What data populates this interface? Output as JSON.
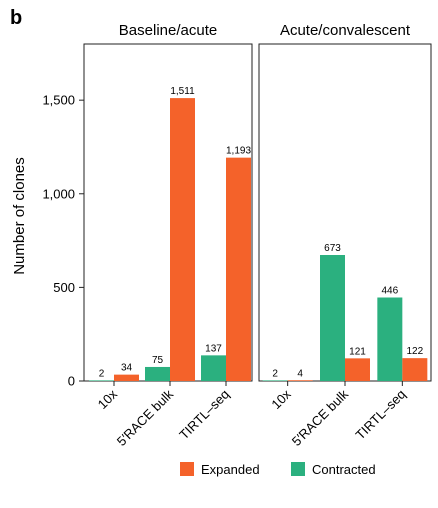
{
  "panel_label": "b",
  "chart_data": [
    {
      "type": "bar",
      "title": "Baseline/acute",
      "ylabel": "Number of clones",
      "categories": [
        "10x",
        "5′RACE bulk",
        "TIRTL–seq"
      ],
      "ylim": [
        0,
        1800
      ],
      "yticks": [
        "0",
        "500",
        "1,000",
        "1,500"
      ],
      "ytick_values": [
        0,
        500,
        1000,
        1500
      ],
      "series": [
        {
          "name": "Contracted",
          "color": "#2bb07f",
          "values": [
            2,
            75,
            137
          ],
          "labels": [
            "2",
            "75",
            "137"
          ]
        },
        {
          "name": "Expanded",
          "color": "#f4622a",
          "values": [
            34,
            1511,
            1193
          ],
          "labels": [
            "34",
            "1,511",
            "1,193"
          ]
        }
      ]
    },
    {
      "type": "bar",
      "title": "Acute/convalescent",
      "categories": [
        "10x",
        "5′RACE bulk",
        "TIRTL–seq"
      ],
      "ylim": [
        0,
        1800
      ],
      "series": [
        {
          "name": "Contracted",
          "color": "#2bb07f",
          "values": [
            2,
            673,
            446
          ],
          "labels": [
            "2",
            "673",
            "446"
          ]
        },
        {
          "name": "Expanded",
          "color": "#f4622a",
          "values": [
            4,
            121,
            122
          ],
          "labels": [
            "4",
            "121",
            "122"
          ]
        }
      ]
    }
  ],
  "legend": {
    "items": [
      {
        "label": "Expanded",
        "color": "#f4622a"
      },
      {
        "label": "Contracted",
        "color": "#2bb07f"
      }
    ]
  }
}
